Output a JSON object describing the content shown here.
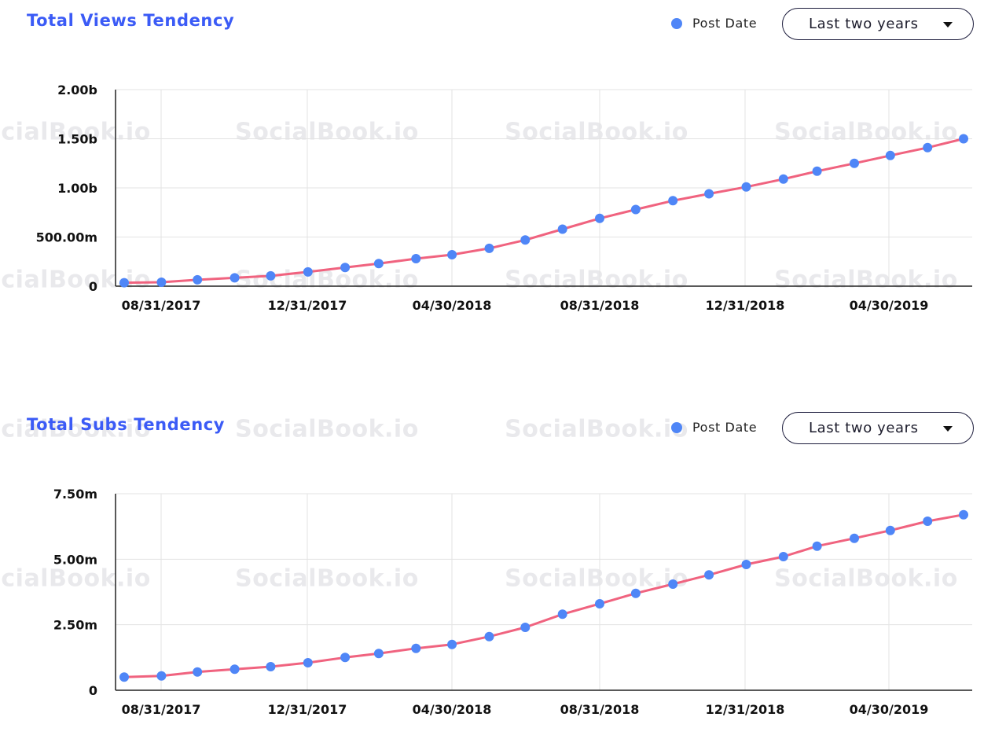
{
  "watermark_text": "SocialBook.io",
  "colors": {
    "title": "#3b5bf6",
    "line": "#f0637f",
    "point": "#4f86f7",
    "grid": "#e3e3e3"
  },
  "panels": [
    {
      "title": "Total Views Tendency",
      "legend_label": "Post Date",
      "range_label": "Last two years",
      "icon": "chevron-down-icon"
    },
    {
      "title": "Total Subs Tendency",
      "legend_label": "Post Date",
      "range_label": "Last two years",
      "icon": "chevron-down-icon"
    }
  ],
  "chart_data": [
    {
      "type": "line",
      "title": "Total Views Tendency",
      "xlabel": "",
      "ylabel": "",
      "x_ticks": [
        "08/31/2017",
        "12/31/2017",
        "04/30/2018",
        "08/31/2018",
        "12/31/2018",
        "04/30/2019"
      ],
      "y_ticks": [
        {
          "value": 0,
          "label": "0"
        },
        {
          "value": 500000000,
          "label": "500.00m"
        },
        {
          "value": 1000000000,
          "label": "1.00b"
        },
        {
          "value": 1500000000,
          "label": "1.50b"
        },
        {
          "value": 2000000000,
          "label": "2.00b"
        }
      ],
      "ylim": [
        0,
        2000000000
      ],
      "x": [
        "2017-07-31",
        "2017-08-31",
        "2017-09-30",
        "2017-10-31",
        "2017-11-30",
        "2017-12-31",
        "2018-01-31",
        "2018-02-28",
        "2018-03-31",
        "2018-04-30",
        "2018-05-31",
        "2018-06-30",
        "2018-07-31",
        "2018-08-31",
        "2018-09-30",
        "2018-10-31",
        "2018-11-30",
        "2018-12-31",
        "2019-01-31",
        "2019-02-28",
        "2019-03-31",
        "2019-04-30",
        "2019-05-31",
        "2019-06-30"
      ],
      "legend": [
        "Post Date"
      ],
      "series": [
        {
          "name": "Post Date",
          "values": [
            35000000,
            40000000,
            65000000,
            85000000,
            105000000,
            145000000,
            190000000,
            230000000,
            280000000,
            320000000,
            385000000,
            470000000,
            580000000,
            690000000,
            780000000,
            870000000,
            940000000,
            1010000000,
            1090000000,
            1170000000,
            1250000000,
            1330000000,
            1410000000,
            1500000000
          ]
        }
      ]
    },
    {
      "type": "line",
      "title": "Total Subs Tendency",
      "xlabel": "",
      "ylabel": "",
      "x_ticks": [
        "08/31/2017",
        "12/31/2017",
        "04/30/2018",
        "08/31/2018",
        "12/31/2018",
        "04/30/2019"
      ],
      "y_ticks": [
        {
          "value": 0,
          "label": "0"
        },
        {
          "value": 2500000,
          "label": "2.50m"
        },
        {
          "value": 5000000,
          "label": "5.00m"
        },
        {
          "value": 7500000,
          "label": "7.50m"
        }
      ],
      "ylim": [
        0,
        7500000
      ],
      "x": [
        "2017-07-31",
        "2017-08-31",
        "2017-09-30",
        "2017-10-31",
        "2017-11-30",
        "2017-12-31",
        "2018-01-31",
        "2018-02-28",
        "2018-03-31",
        "2018-04-30",
        "2018-05-31",
        "2018-06-30",
        "2018-07-31",
        "2018-08-31",
        "2018-09-30",
        "2018-10-31",
        "2018-11-30",
        "2018-12-31",
        "2019-01-31",
        "2019-02-28",
        "2019-03-31",
        "2019-04-30",
        "2019-05-31",
        "2019-06-30"
      ],
      "legend": [
        "Post Date"
      ],
      "series": [
        {
          "name": "Post Date",
          "values": [
            500000,
            550000,
            700000,
            800000,
            900000,
            1050000,
            1250000,
            1400000,
            1600000,
            1750000,
            2050000,
            2400000,
            2900000,
            3300000,
            3700000,
            4050000,
            4400000,
            4800000,
            5100000,
            5500000,
            5800000,
            6100000,
            6450000,
            6700000
          ]
        }
      ]
    }
  ]
}
